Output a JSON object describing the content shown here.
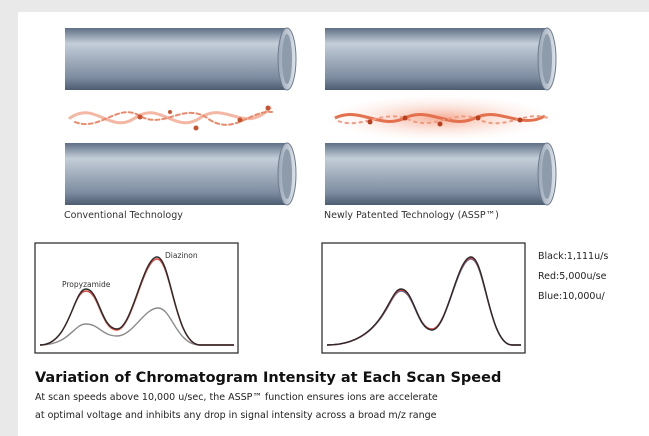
{
  "figure": {
    "left_caption": "Conventional Technology",
    "right_caption": "Newly Patented Technology (ASSP™)",
    "peak_labels": [
      "Propyzamide",
      "Diazinon"
    ],
    "legend": [
      "Black:1,111u/s",
      "Red:5,000u/se",
      "Blue:10,000u/"
    ],
    "title": "Variation of Chromatogram Intensity at Each Scan Speed",
    "body": [
      "At scan speeds above 10,000 u/sec, the ASSP™ function ensures ions are accelerate",
      "at optimal voltage and inhibits any drop in signal intensity across a broad m/z range"
    ]
  }
}
